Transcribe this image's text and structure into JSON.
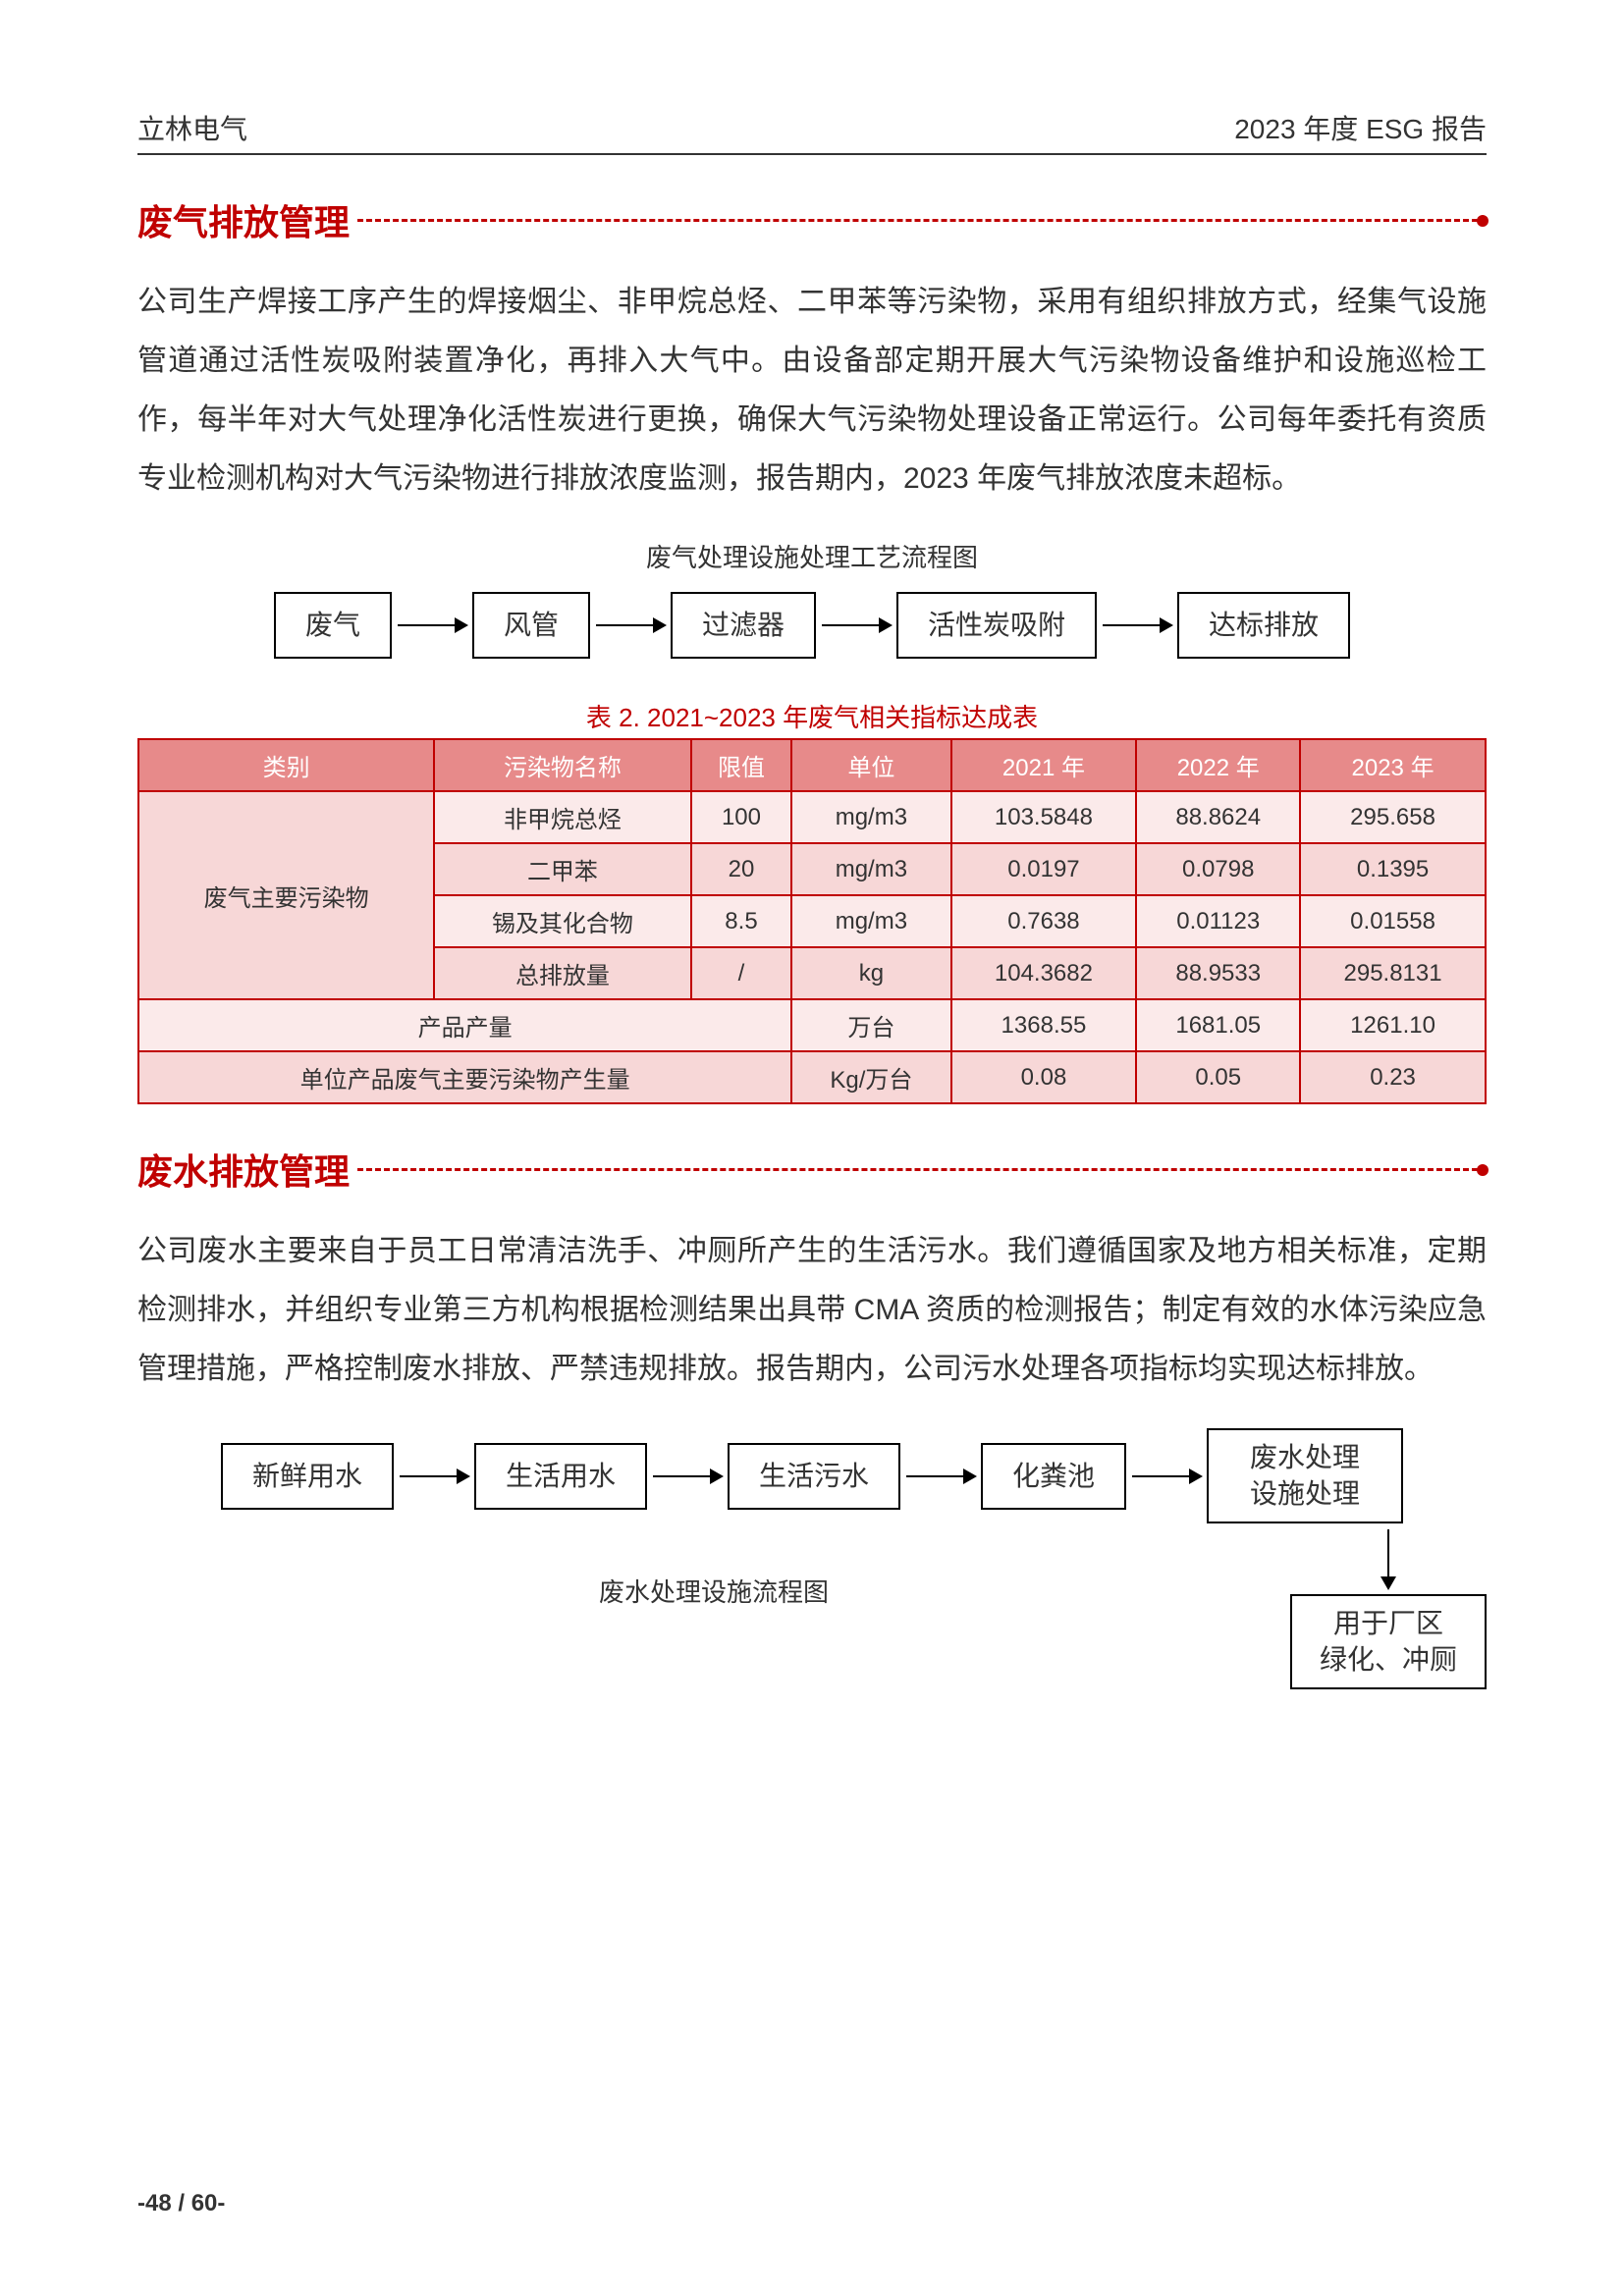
{
  "header": {
    "company": "立林电气",
    "report": "2023 年度 ESG 报告"
  },
  "section1": {
    "title": "废气排放管理",
    "body": "公司生产焊接工序产生的焊接烟尘、非甲烷总烃、二甲苯等污染物，采用有组织排放方式，经集气设施管道通过活性炭吸附装置净化，再排入大气中。由设备部定期开展大气污染物设备维护和设施巡检工作，每半年对大气处理净化活性炭进行更换，确保大气污染物处理设备正常运行。公司每年委托有资质专业检测机构对大气污染物进行排放浓度监测，报告期内，2023 年废气排放浓度未超标。",
    "flowCaption": "废气处理设施处理工艺流程图",
    "flowNodes": [
      "废气",
      "风管",
      "过滤器",
      "活性炭吸附",
      "达标排放"
    ]
  },
  "table": {
    "caption": "表 2. 2021~2023 年废气相关指标达成表",
    "headers": [
      "类别",
      "污染物名称",
      "限值",
      "单位",
      "2021 年",
      "2022 年",
      "2023 年"
    ],
    "groupLabel": "废气主要污染物",
    "rows": [
      [
        "非甲烷总烃",
        "100",
        "mg/m3",
        "103.5848",
        "88.8624",
        "295.658"
      ],
      [
        "二甲苯",
        "20",
        "mg/m3",
        "0.0197",
        "0.0798",
        "0.1395"
      ],
      [
        "锡及其化合物",
        "8.5",
        "mg/m3",
        "0.7638",
        "0.01123",
        "0.01558"
      ],
      [
        "总排放量",
        "/",
        "kg",
        "104.3682",
        "88.9533",
        "295.8131"
      ]
    ],
    "row5": [
      "产品产量",
      "万台",
      "1368.55",
      "1681.05",
      "1261.10"
    ],
    "row6": [
      "单位产品废气主要污染物产生量",
      "Kg/万台",
      "0.08",
      "0.05",
      "0.23"
    ]
  },
  "section2": {
    "title": "废水排放管理",
    "body": "公司废水主要来自于员工日常清洁洗手、冲厕所产生的生活污水。我们遵循国家及地方相关标准，定期检测排水，并组织专业第三方机构根据检测结果出具带 CMA 资质的检测报告；制定有效的水体污染应急管理措施，严格控制废水排放、严禁违规排放。报告期内，公司污水处理各项指标均实现达标排放。",
    "flowNodes": [
      "新鲜用水",
      "生活用水",
      "生活污水",
      "化粪池"
    ],
    "flowNode5a": "废水处理",
    "flowNode5b": "设施处理",
    "flowNode6a": "用于厂区",
    "flowNode6b": "绿化、冲厕",
    "flowCaption": "废水处理设施流程图"
  },
  "footer": {
    "page": "-48 / 60-"
  }
}
